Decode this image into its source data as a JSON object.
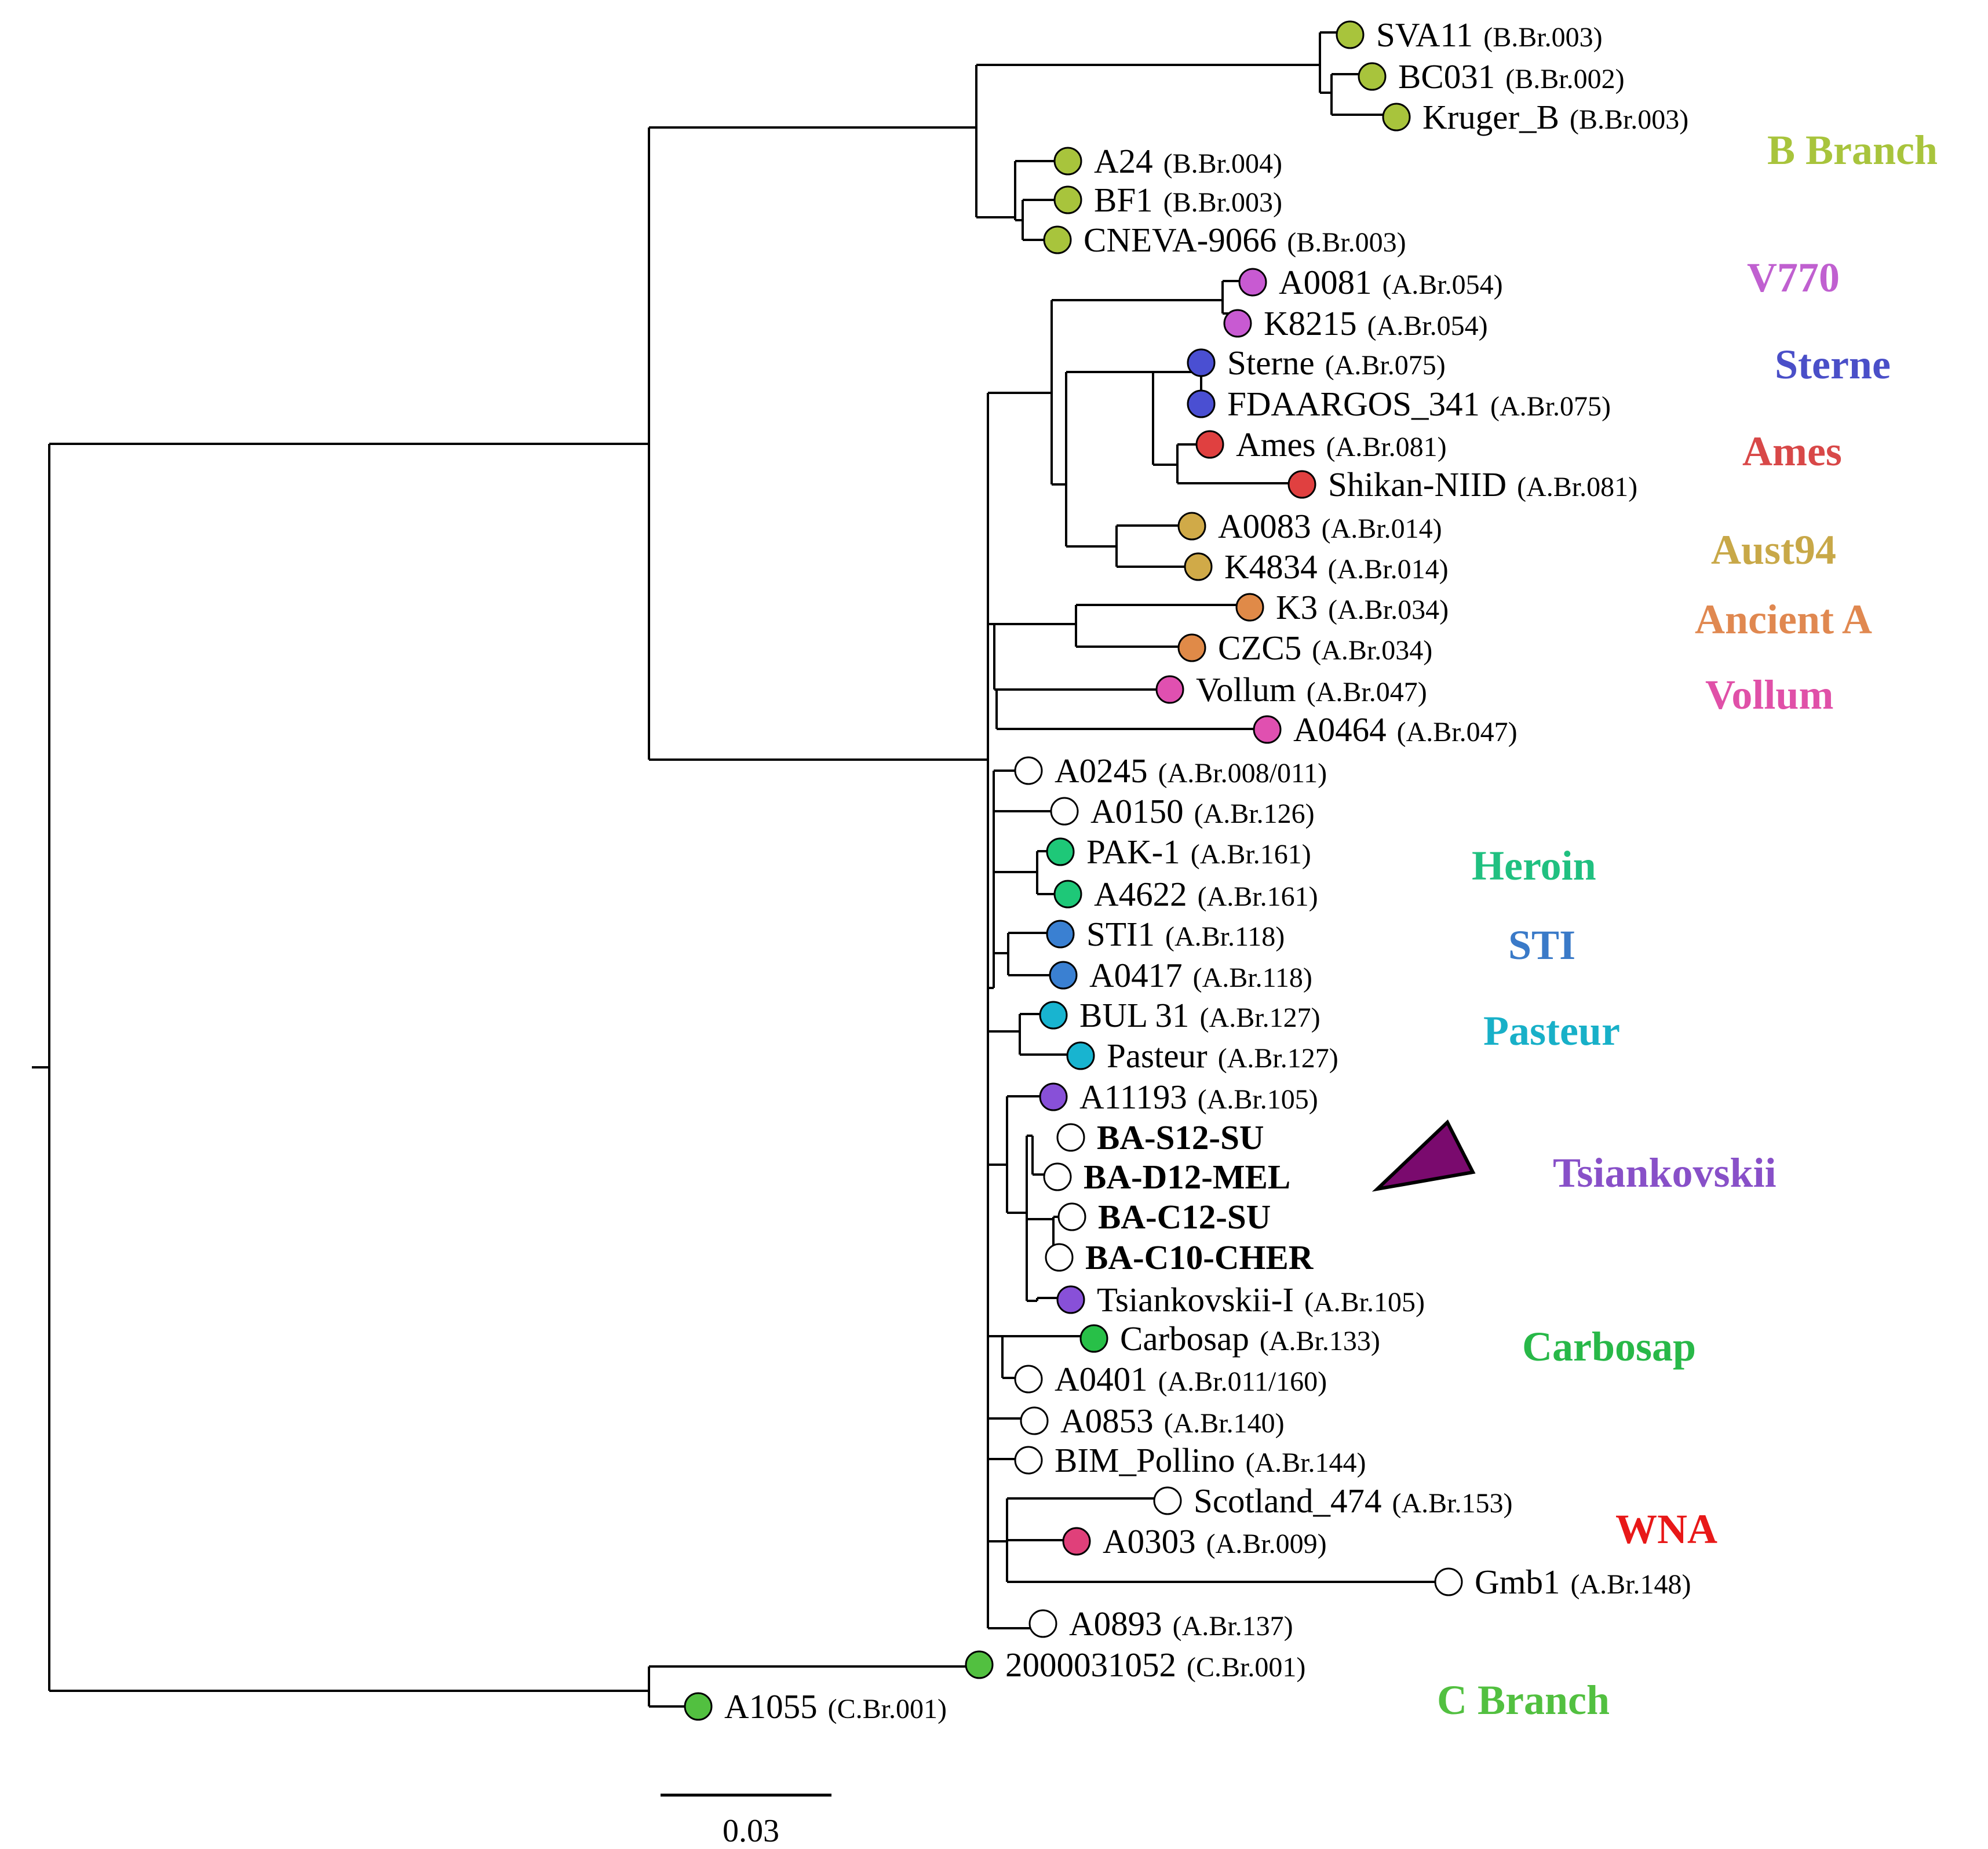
{
  "figure": {
    "type": "phylogenetic-tree",
    "scale_bar": {
      "label": "0.03"
    }
  },
  "tips": [
    {
      "name": "SVA11",
      "code": "(B.Br.003)",
      "color": "#a8c43c"
    },
    {
      "name": "BC031",
      "code": "(B.Br.002)",
      "color": "#a8c43c"
    },
    {
      "name": "Kruger_B",
      "code": "(B.Br.003)",
      "color": "#a8c43c"
    },
    {
      "name": "A24",
      "code": "(B.Br.004)",
      "color": "#a8c43c"
    },
    {
      "name": "BF1",
      "code": "(B.Br.003)",
      "color": "#a8c43c"
    },
    {
      "name": "CNEVA-9066",
      "code": "(B.Br.003)",
      "color": "#a8c43c"
    },
    {
      "name": "A0081",
      "code": "(A.Br.054)",
      "color": "#c85ad2"
    },
    {
      "name": "K8215",
      "code": "(A.Br.054)",
      "color": "#c85ad2"
    },
    {
      "name": "Sterne",
      "code": "(A.Br.075)",
      "color": "#4a4fd2"
    },
    {
      "name": "FDAARGOS_341",
      "code": "(A.Br.075)",
      "color": "#4a4fd2"
    },
    {
      "name": "Ames",
      "code": "(A.Br.081)",
      "color": "#e04040"
    },
    {
      "name": "Shikan-NIID",
      "code": "(A.Br.081)",
      "color": "#e04040"
    },
    {
      "name": "A0083",
      "code": "(A.Br.014)",
      "color": "#d0aa48"
    },
    {
      "name": "K4834",
      "code": "(A.Br.014)",
      "color": "#d0aa48"
    },
    {
      "name": "K3",
      "code": "(A.Br.034)",
      "color": "#e08a48"
    },
    {
      "name": "CZC5",
      "code": "(A.Br.034)",
      "color": "#e08a48"
    },
    {
      "name": "Vollum",
      "code": "(A.Br.047)",
      "color": "#e050b0"
    },
    {
      "name": "A0464",
      "code": "(A.Br.047)",
      "color": "#e050b0"
    },
    {
      "name": "A0245",
      "code": "(A.Br.008/011)",
      "color": "#ffffff"
    },
    {
      "name": "A0150",
      "code": "(A.Br.126)",
      "color": "#ffffff"
    },
    {
      "name": "PAK-1",
      "code": "(A.Br.161)",
      "color": "#1ec878"
    },
    {
      "name": "A4622",
      "code": "(A.Br.161)",
      "color": "#1ec878"
    },
    {
      "name": "STI1",
      "code": "(A.Br.118)",
      "color": "#3a80d2"
    },
    {
      "name": "A0417",
      "code": "(A.Br.118)",
      "color": "#3a80d2"
    },
    {
      "name": "BUL 31",
      "code": "(A.Br.127)",
      "color": "#18b4d0"
    },
    {
      "name": "Pasteur",
      "code": "(A.Br.127)",
      "color": "#18b4d0"
    },
    {
      "name": "A11193",
      "code": "(A.Br.105)",
      "color": "#8850d8"
    },
    {
      "name": "BA-S12-SU",
      "code": "",
      "color": "#ffffff",
      "bold": true
    },
    {
      "name": "BA-D12-MEL",
      "code": "",
      "color": "#ffffff",
      "bold": true
    },
    {
      "name": "BA-C12-SU",
      "code": "",
      "color": "#ffffff",
      "bold": true
    },
    {
      "name": "BA-C10-CHER",
      "code": "",
      "color": "#ffffff",
      "bold": true
    },
    {
      "name": "Tsiankovskii-I",
      "code": "(A.Br.105)",
      "color": "#8850d8"
    },
    {
      "name": "Carbosap",
      "code": "(A.Br.133)",
      "color": "#28c048"
    },
    {
      "name": "A0401",
      "code": "(A.Br.011/160)",
      "color": "#ffffff"
    },
    {
      "name": "A0853",
      "code": "(A.Br.140)",
      "color": "#ffffff"
    },
    {
      "name": "BIM_Pollino",
      "code": "(A.Br.144)",
      "color": "#ffffff"
    },
    {
      "name": "Scotland_474",
      "code": "(A.Br.153)",
      "color": "#ffffff"
    },
    {
      "name": "A0303",
      "code": "(A.Br.009)",
      "color": "#e0407a"
    },
    {
      "name": "Gmb1",
      "code": "(A.Br.148)",
      "color": "#ffffff"
    },
    {
      "name": "A0893",
      "code": "(A.Br.137)",
      "color": "#ffffff"
    },
    {
      "name": "2000031052",
      "code": "(C.Br.001)",
      "color": "#52c040"
    },
    {
      "name": "A1055",
      "code": "(C.Br.001)",
      "color": "#52c040"
    }
  ],
  "clades": [
    {
      "label": "B Branch",
      "color": "#a8c43c"
    },
    {
      "label": "V770",
      "color": "#c060d0"
    },
    {
      "label": "Sterne",
      "color": "#4a4fc8"
    },
    {
      "label": "Ames",
      "color": "#d84848"
    },
    {
      "label": "Aust94",
      "color": "#c8a848"
    },
    {
      "label": "Ancient A",
      "color": "#e08850"
    },
    {
      "label": "Vollum",
      "color": "#e050a8"
    },
    {
      "label": "Heroin",
      "color": "#20c080"
    },
    {
      "label": "STI",
      "color": "#3a7ac8"
    },
    {
      "label": "Pasteur",
      "color": "#18b0c8"
    },
    {
      "label": "Tsiankovskii",
      "color": "#8850c8"
    },
    {
      "label": "Carbosap",
      "color": "#28b848"
    },
    {
      "label": "WNA",
      "color": "#e81818"
    },
    {
      "label": "C Branch",
      "color": "#52c040"
    }
  ],
  "marker_color": "#7a0a6e"
}
